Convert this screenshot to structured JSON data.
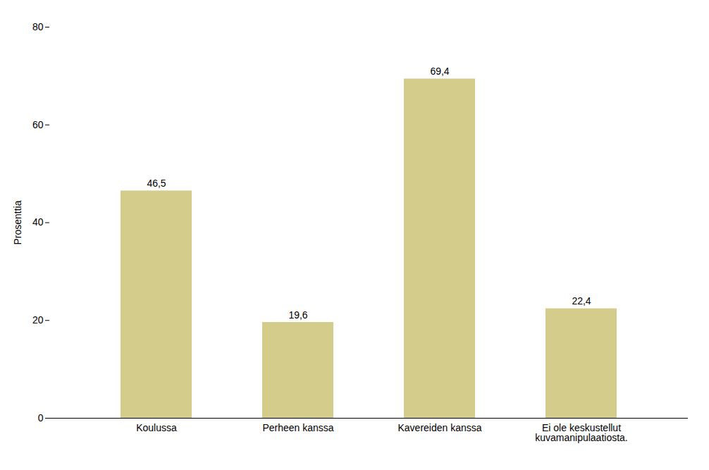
{
  "chart_data": {
    "type": "bar",
    "categories": [
      "Koulussa",
      "Perheen kanssa",
      "Kavereiden kanssa",
      "Ei ole keskustellut\nkuvamanipulaatiosta."
    ],
    "values": [
      46.5,
      19.6,
      69.4,
      22.4
    ],
    "value_labels": [
      "46,5",
      "19,6",
      "69,4",
      "22,4"
    ],
    "data_labels": true,
    "color": "#d4cc8a",
    "ylabel": "Prosenttia",
    "ylim": [
      0,
      80
    ],
    "yticks": [
      0,
      20,
      40,
      60,
      80
    ],
    "grid": false
  }
}
